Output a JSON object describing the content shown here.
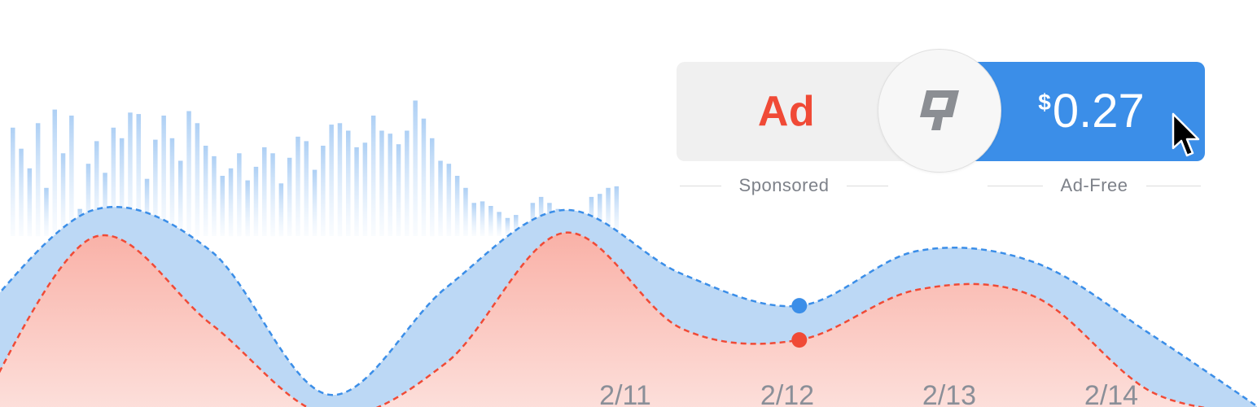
{
  "chart_data": {
    "type": "area",
    "x_ticks": [
      "2/11",
      "2/12",
      "2/13",
      "2/14"
    ],
    "series": [
      {
        "color": "#3b8ee8",
        "fill": "#bcd8f5",
        "style": "dashed",
        "values": [
          42,
          90,
          72,
          9,
          56,
          90,
          62,
          48,
          72,
          67,
          35,
          0
        ]
      },
      {
        "color": "#f04a36",
        "fill": "#fbc0b8",
        "style": "dashed",
        "values": [
          0,
          78,
          40,
          0,
          23,
          80,
          38,
          33,
          55,
          52,
          10,
          0
        ]
      }
    ],
    "highlight_index": 7,
    "bars": [
      72,
      58,
      45,
      75,
      32,
      84,
      55,
      80,
      18,
      48,
      63,
      42,
      72,
      65,
      82,
      81,
      38,
      64,
      80,
      65,
      50,
      83,
      75,
      60,
      53,
      40,
      45,
      55,
      37,
      46,
      59,
      55,
      35,
      52,
      66,
      63,
      44,
      60,
      74,
      75,
      70,
      59,
      62,
      80,
      70,
      68,
      61,
      70,
      90,
      78,
      65,
      50,
      48,
      40,
      32,
      22,
      23,
      20,
      16,
      12,
      14,
      8,
      22,
      26,
      22,
      18,
      8,
      10,
      5,
      26,
      28,
      32,
      33
    ],
    "grid": false
  },
  "toggle": {
    "sponsored_label": "Ad",
    "sponsored_caption": "Sponsored",
    "price_currency": "$",
    "price_amount": "0.27",
    "adfree_caption": "Ad-Free",
    "logo_icon": "quartz-q-icon",
    "cursor_icon": "mouse-pointer-icon",
    "sponsored_color": "#f04a36",
    "adfree_color": "#3b8ee8"
  }
}
